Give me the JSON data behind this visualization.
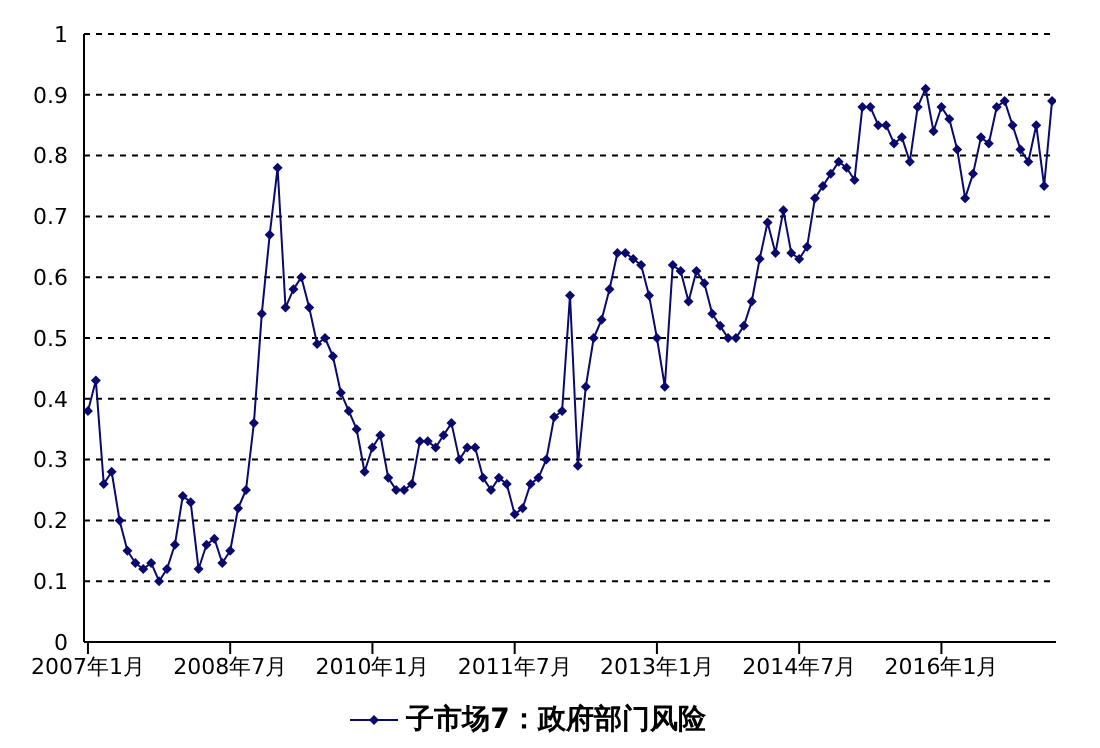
{
  "chart_data": {
    "type": "line",
    "categories": [
      "2007年1月",
      null,
      null,
      null,
      null,
      null,
      null,
      null,
      null,
      null,
      null,
      null,
      null,
      null,
      null,
      null,
      null,
      null,
      "2008年7月",
      null,
      null,
      null,
      null,
      null,
      null,
      null,
      null,
      null,
      null,
      null,
      null,
      null,
      null,
      null,
      null,
      null,
      "2010年1月",
      null,
      null,
      null,
      null,
      null,
      null,
      null,
      null,
      null,
      null,
      null,
      null,
      null,
      null,
      null,
      null,
      null,
      "2011年7月",
      null,
      null,
      null,
      null,
      null,
      null,
      null,
      null,
      null,
      null,
      null,
      null,
      null,
      null,
      null,
      null,
      null,
      "2013年1月",
      null,
      null,
      null,
      null,
      null,
      null,
      null,
      null,
      null,
      null,
      null,
      null,
      null,
      null,
      null,
      null,
      null,
      "2014年7月",
      null,
      null,
      null,
      null,
      null,
      null,
      null,
      null,
      null,
      null,
      null,
      null,
      null,
      null,
      null,
      null,
      null,
      "2016年1月",
      null,
      null,
      null,
      null,
      null,
      null,
      null,
      null,
      null,
      null,
      null,
      null,
      null,
      null
    ],
    "series": [
      {
        "name": "子市场7：政府部门风险",
        "color": "#0a0a6e",
        "values": [
          0.38,
          0.43,
          0.26,
          0.28,
          0.2,
          0.15,
          0.13,
          0.12,
          0.13,
          0.1,
          0.12,
          0.16,
          0.24,
          0.23,
          0.12,
          0.16,
          0.17,
          0.13,
          0.15,
          0.22,
          0.25,
          0.36,
          0.54,
          0.67,
          0.78,
          0.55,
          0.58,
          0.6,
          0.55,
          0.49,
          0.5,
          0.47,
          0.41,
          0.38,
          0.35,
          0.28,
          0.32,
          0.34,
          0.27,
          0.25,
          0.25,
          0.26,
          0.33,
          0.33,
          0.32,
          0.34,
          0.36,
          0.3,
          0.32,
          0.32,
          0.27,
          0.25,
          0.27,
          0.26,
          0.21,
          0.22,
          0.26,
          0.27,
          0.3,
          0.37,
          0.38,
          0.57,
          0.29,
          0.42,
          0.5,
          0.53,
          0.58,
          0.64,
          0.64,
          0.63,
          0.62,
          0.57,
          0.5,
          0.42,
          0.62,
          0.61,
          0.56,
          0.61,
          0.59,
          0.54,
          0.52,
          0.5,
          0.5,
          0.52,
          0.56,
          0.63,
          0.69,
          0.64,
          0.71,
          0.64,
          0.63,
          0.65,
          0.73,
          0.75,
          0.77,
          0.79,
          0.78,
          0.76,
          0.88,
          0.88,
          0.85,
          0.85,
          0.82,
          0.83,
          0.79,
          0.88,
          0.91,
          0.84,
          0.88,
          0.86,
          0.81,
          0.73,
          0.77,
          0.83,
          0.82,
          0.88,
          0.89,
          0.85,
          0.81,
          0.79,
          0.85,
          0.75,
          0.89
        ]
      }
    ],
    "ylim": [
      0,
      1
    ],
    "yticks": [
      0,
      0.1,
      0.2,
      0.3,
      0.4,
      0.5,
      0.6,
      0.7,
      0.8,
      0.9,
      1
    ],
    "grid": "y",
    "legend": "bottom",
    "marker": "diamond",
    "line_style": "solid"
  }
}
